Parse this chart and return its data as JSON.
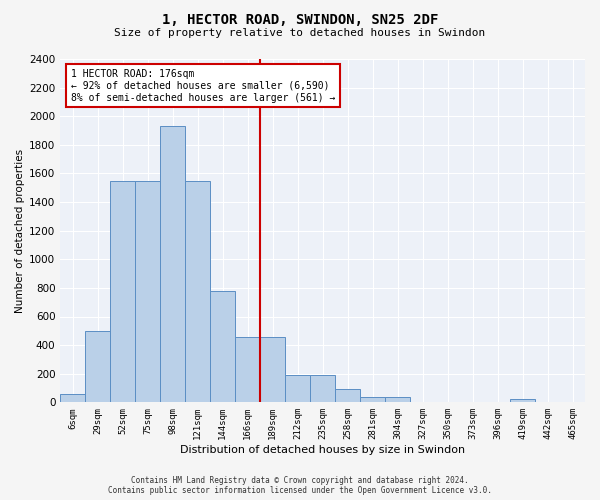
{
  "title": "1, HECTOR ROAD, SWINDON, SN25 2DF",
  "subtitle": "Size of property relative to detached houses in Swindon",
  "xlabel": "Distribution of detached houses by size in Swindon",
  "ylabel": "Number of detached properties",
  "categories": [
    "6sqm",
    "29sqm",
    "52sqm",
    "75sqm",
    "98sqm",
    "121sqm",
    "144sqm",
    "166sqm",
    "189sqm",
    "212sqm",
    "235sqm",
    "258sqm",
    "281sqm",
    "304sqm",
    "327sqm",
    "350sqm",
    "373sqm",
    "396sqm",
    "419sqm",
    "442sqm",
    "465sqm"
  ],
  "bar_values": [
    60,
    500,
    1550,
    1550,
    1930,
    1550,
    780,
    460,
    460,
    190,
    190,
    90,
    35,
    35,
    0,
    0,
    0,
    0,
    25,
    0,
    0
  ],
  "bar_color": "#bad0e8",
  "bar_edge_color": "#5b8ec4",
  "vline_x_index": 7.5,
  "vline_color": "#cc0000",
  "ylim": [
    0,
    2400
  ],
  "yticks": [
    0,
    200,
    400,
    600,
    800,
    1000,
    1200,
    1400,
    1600,
    1800,
    2000,
    2200,
    2400
  ],
  "annotation_title": "1 HECTOR ROAD: 176sqm",
  "annotation_line1": "← 92% of detached houses are smaller (6,590)",
  "annotation_line2": "8% of semi-detached houses are larger (561) →",
  "annotation_box_color": "#cc0000",
  "background_color": "#edf1f8",
  "grid_color": "#ffffff",
  "footer_line1": "Contains HM Land Registry data © Crown copyright and database right 2024.",
  "footer_line2": "Contains public sector information licensed under the Open Government Licence v3.0."
}
